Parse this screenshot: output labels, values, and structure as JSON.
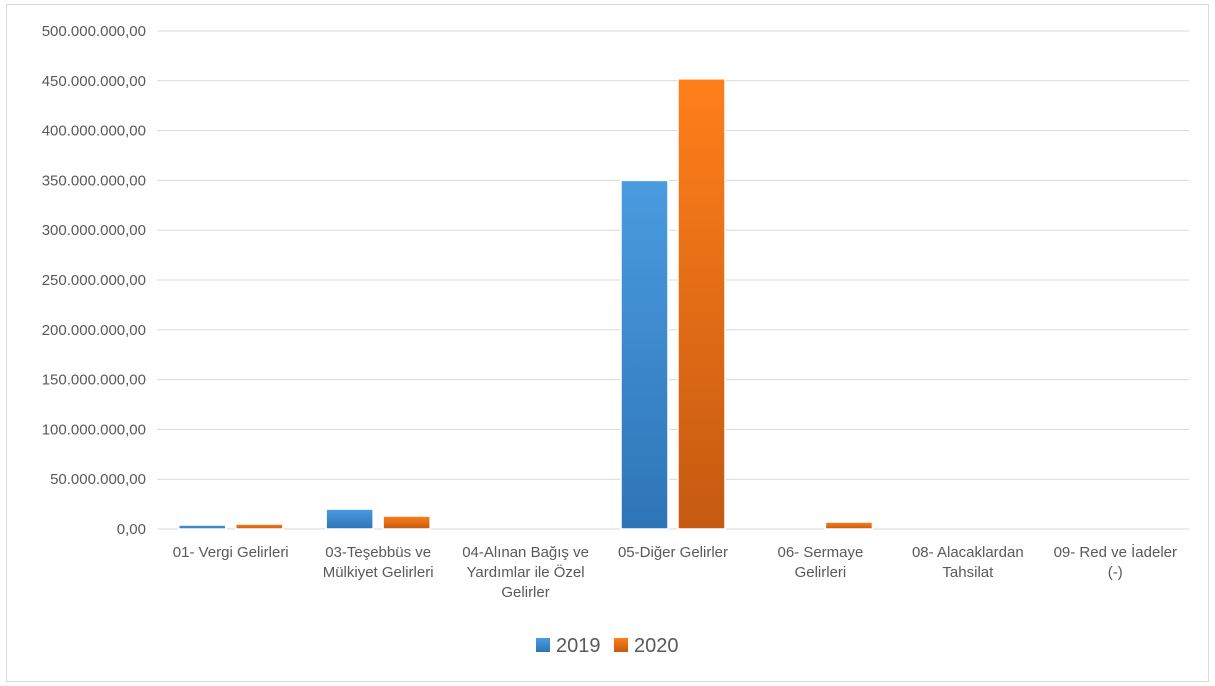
{
  "chart_data": {
    "type": "bar",
    "categories": [
      [
        "01- Vergi Gelirleri"
      ],
      [
        "03-Teşebbüs ve",
        "Mülkiyet Gelirleri"
      ],
      [
        "04-Alınan Bağış ve",
        "Yardımlar ile Özel",
        "Gelirler"
      ],
      [
        "05-Diğer Gelirler"
      ],
      [
        "06- Sermaye",
        "Gelirleri"
      ],
      [
        "08- Alacaklardan",
        "Tahsilat"
      ],
      [
        "09- Red ve İadeler",
        "(-)"
      ]
    ],
    "series": [
      {
        "name": "2019",
        "color": "#2e75b6",
        "color_light": "#4a9be0",
        "values": [
          4000000,
          20000000,
          0,
          350000000,
          0,
          0,
          0
        ]
      },
      {
        "name": "2020",
        "color": "#c55a11",
        "color_light": "#ff7f1a",
        "values": [
          5000000,
          13000000,
          0,
          452000000,
          7000000,
          0,
          0
        ]
      }
    ],
    "ylim": [
      0,
      500000000
    ],
    "y_ticks": [
      "0,00",
      "50.000.000,00",
      "100.000.000,00",
      "150.000.000,00",
      "200.000.000,00",
      "250.000.000,00",
      "300.000.000,00",
      "350.000.000,00",
      "400.000.000,00",
      "450.000.000,00",
      "500.000.000,00"
    ],
    "grid": true,
    "legend_position": "bottom",
    "title": "",
    "xlabel": "",
    "ylabel": ""
  }
}
